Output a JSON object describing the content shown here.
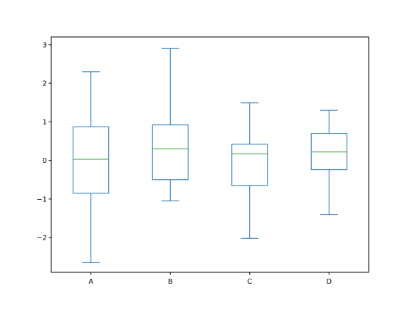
{
  "chart_data": {
    "type": "box",
    "title": "",
    "xlabel": "",
    "ylabel": "",
    "categories": [
      "A",
      "B",
      "C",
      "D"
    ],
    "ylim": [
      -2.9,
      3.2
    ],
    "yticks": [
      -2,
      -1,
      0,
      1,
      2,
      3
    ],
    "ytick_labels": [
      "−2",
      "−1",
      "0",
      "1",
      "2",
      "3"
    ],
    "grid": false,
    "boxes": [
      {
        "category": "A",
        "whislo": -2.65,
        "q1": -0.85,
        "med": 0.03,
        "q3": 0.87,
        "whishi": 2.3
      },
      {
        "category": "B",
        "whislo": -1.05,
        "q1": -0.5,
        "med": 0.3,
        "q3": 0.92,
        "whishi": 2.9
      },
      {
        "category": "C",
        "whislo": -2.02,
        "q1": -0.65,
        "med": 0.17,
        "q3": 0.42,
        "whishi": 1.49
      },
      {
        "category": "D",
        "whislo": -1.4,
        "q1": -0.24,
        "med": 0.22,
        "q3": 0.7,
        "whishi": 1.3
      }
    ],
    "colors": {
      "box": "#1f77b4",
      "median": "#2ca02c",
      "axes": "#000000",
      "background": "#ffffff"
    }
  }
}
